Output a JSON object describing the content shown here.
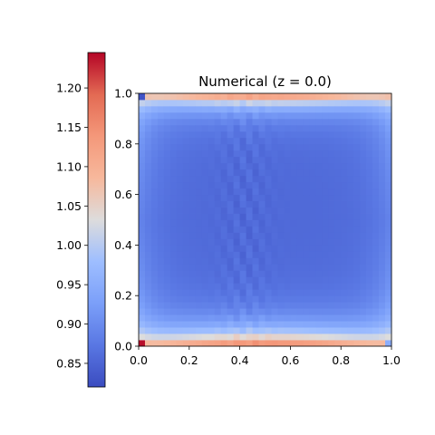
{
  "chart_data": {
    "type": "heatmap",
    "title": "Numerical (z = 0.0)",
    "xlabel": "",
    "ylabel": "",
    "xlim": [
      0.0,
      1.0
    ],
    "ylim": [
      0.0,
      1.0
    ],
    "x_ticks": [
      "0.0",
      "0.2",
      "0.4",
      "0.6",
      "0.8",
      "1.0"
    ],
    "y_ticks": [
      "0.0",
      "0.2",
      "0.4",
      "0.6",
      "0.8",
      "1.0"
    ],
    "grid": false,
    "colormap": "coolwarm",
    "colorbar": {
      "placement": "left",
      "range": [
        0.82,
        1.245
      ],
      "ticks": [
        "0.85",
        "0.90",
        "0.95",
        "1.00",
        "1.05",
        "1.10",
        "1.15",
        "1.20"
      ]
    },
    "grid_resolution": [
      40,
      40
    ],
    "field_profile": {
      "center_value": 0.855,
      "bottom_edge_value": 1.17,
      "top_edge_value": 1.16,
      "corner_min_value": 0.83,
      "corner_max_value": 1.24
    }
  }
}
